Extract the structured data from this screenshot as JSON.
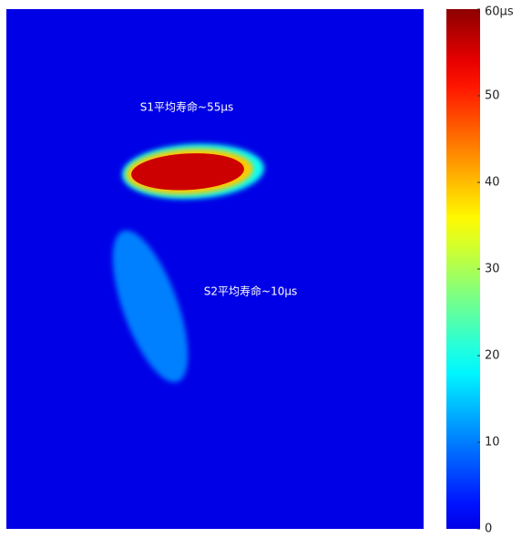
{
  "chart_data": {
    "type": "heatmap",
    "background_value": 0,
    "regions": [
      {
        "label": "S1平均寿命~55μs",
        "value": 55
      },
      {
        "label": "S2平均寿命~10μs",
        "value": 10
      }
    ],
    "clim": [
      0,
      60
    ],
    "cticks": [
      0,
      10,
      20,
      30,
      40,
      50,
      {
        "value": 60,
        "label": "60μs"
      }
    ]
  }
}
